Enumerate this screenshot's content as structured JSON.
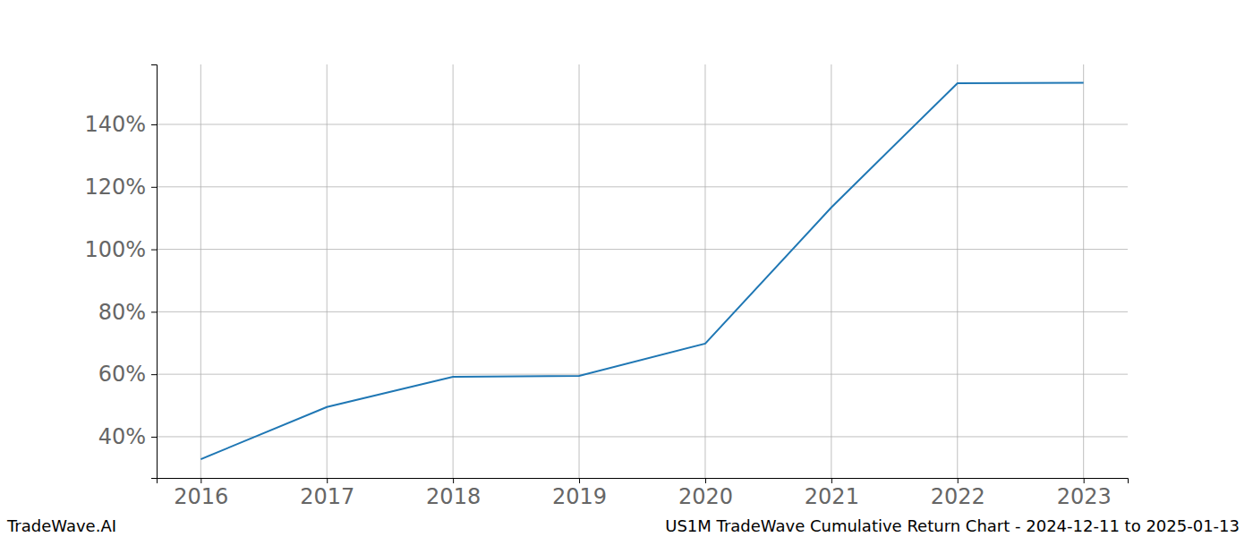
{
  "chart_data": {
    "type": "line",
    "title": "US1M TradeWave Cumulative Return Chart - 2024-12-11 to 2025-01-13",
    "annotations": [
      "TradeWave.AI"
    ],
    "x": [
      2016,
      2017,
      2018,
      2019,
      2020,
      2021,
      2022,
      2023
    ],
    "values": [
      32.8,
      49.5,
      59.2,
      59.5,
      69.8,
      113.4,
      153.2,
      153.3
    ],
    "color": "#1f77b4",
    "xlim": [
      2015.65,
      2023.35
    ],
    "xticks": [
      2016,
      2017,
      2018,
      2019,
      2020,
      2021,
      2022,
      2023
    ],
    "ylim": [
      26.8,
      159.2
    ],
    "yticks": [
      {
        "value": 40,
        "label": "40%"
      },
      {
        "value": 60,
        "label": "60%"
      },
      {
        "value": 80,
        "label": "80%"
      },
      {
        "value": 100,
        "label": "100%"
      },
      {
        "value": 120,
        "label": "120%"
      },
      {
        "value": 140,
        "label": "140%"
      }
    ],
    "grid": true
  }
}
